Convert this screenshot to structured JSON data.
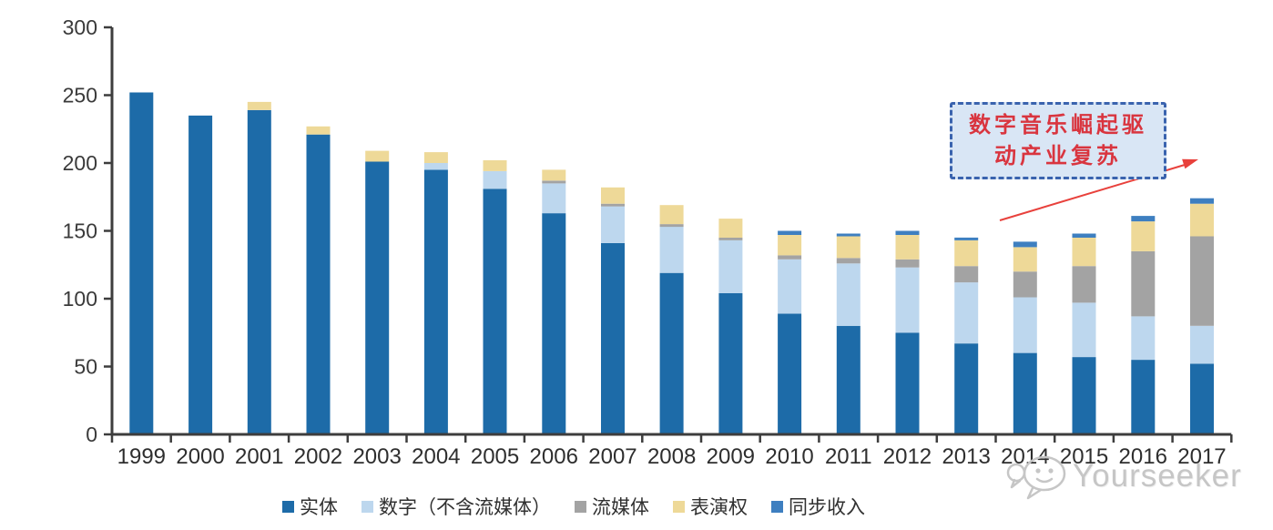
{
  "chart_data": {
    "type": "bar",
    "stacked": true,
    "categories": [
      "1999",
      "2000",
      "2001",
      "2002",
      "2003",
      "2004",
      "2005",
      "2006",
      "2007",
      "2008",
      "2009",
      "2010",
      "2011",
      "2012",
      "2013",
      "2014",
      "2015",
      "2016",
      "2017"
    ],
    "series": [
      {
        "name": "实体",
        "color": "#1d6ba8",
        "values": [
          252,
          235,
          239,
          221,
          201,
          195,
          181,
          163,
          141,
          119,
          104,
          89,
          80,
          75,
          67,
          60,
          57,
          55,
          52
        ]
      },
      {
        "name": "数字（不含流媒体）",
        "color": "#bdd7ee",
        "values": [
          0,
          0,
          0,
          0,
          0,
          5,
          13,
          22,
          27,
          34,
          39,
          40,
          46,
          48,
          45,
          41,
          40,
          32,
          28
        ]
      },
      {
        "name": "流媒体",
        "color": "#a3a3a3",
        "values": [
          0,
          0,
          0,
          0,
          0,
          0,
          0,
          2,
          2,
          2,
          2,
          3,
          4,
          6,
          12,
          19,
          27,
          48,
          66
        ]
      },
      {
        "name": "表演权",
        "color": "#eed998",
        "values": [
          0,
          0,
          6,
          6,
          8,
          8,
          8,
          8,
          12,
          14,
          14,
          15,
          16,
          18,
          19,
          18,
          21,
          22,
          24
        ]
      },
      {
        "name": "同步收入",
        "color": "#3e7fc0",
        "values": [
          0,
          0,
          0,
          0,
          0,
          0,
          0,
          0,
          0,
          0,
          0,
          3,
          2,
          3,
          2,
          4,
          3,
          4,
          4
        ]
      }
    ],
    "totals": [
      252,
      235,
      245,
      227,
      209,
      208,
      202,
      195,
      182,
      169,
      159,
      150,
      148,
      150,
      145,
      142,
      148,
      161,
      174
    ],
    "ylim": [
      0,
      300
    ],
    "yticks": [
      0,
      50,
      100,
      150,
      200,
      250,
      300
    ],
    "xlabel": "",
    "ylabel": "",
    "grid": false,
    "legend_position": "bottom"
  },
  "annotation": {
    "line1": "数字音乐崛起驱",
    "line2": "动产业复苏",
    "text_color": "#d9353f",
    "box_fill": "#d9e6f5",
    "border_color": "#3a63ae",
    "arrow_color": "#e8413c"
  },
  "watermark": {
    "text": "Yourseeker",
    "color": "#c6c6c6"
  }
}
